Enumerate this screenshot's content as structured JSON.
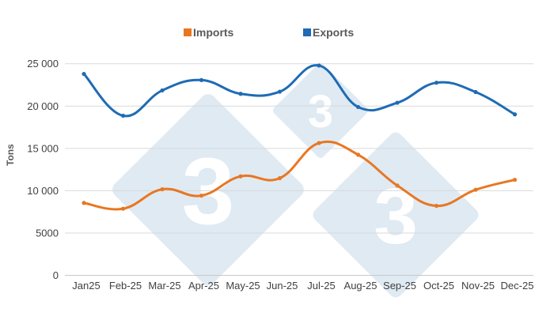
{
  "chart_data": {
    "type": "line",
    "title": "",
    "xlabel": "",
    "ylabel": "Tons",
    "categories": [
      "Jan25",
      "Feb-25",
      "Mar-25",
      "Apr-25",
      "May-25",
      "Jun-25",
      "Jul-25",
      "Aug-25",
      "Sep-25",
      "Oct-25",
      "Nov-25",
      "Dec-25"
    ],
    "series": [
      {
        "name": "Imports",
        "color": "#e87722",
        "values": [
          8550,
          7870,
          10170,
          9420,
          11700,
          11480,
          15630,
          14250,
          10610,
          8210,
          10110,
          11290
        ]
      },
      {
        "name": "Exports",
        "color": "#1f6bb5",
        "values": [
          23800,
          18860,
          21850,
          23070,
          21450,
          21700,
          24790,
          19890,
          20390,
          22760,
          21660,
          19020
        ]
      }
    ],
    "ylim": [
      0,
      25000
    ],
    "yticks": [
      0,
      5000,
      10000,
      15000,
      20000,
      25000
    ],
    "ytick_labels": [
      "0",
      "5000",
      "10 000",
      "15 000",
      "20 000",
      "25 000"
    ],
    "grid": true,
    "smooth": true,
    "legend_position": "top"
  },
  "legend": {
    "items": [
      {
        "label": "Imports",
        "color": "#e87722"
      },
      {
        "label": "Exports",
        "color": "#1f6bb5"
      }
    ]
  },
  "watermark": {
    "glyph": "3",
    "color": "#dfeaf3"
  }
}
